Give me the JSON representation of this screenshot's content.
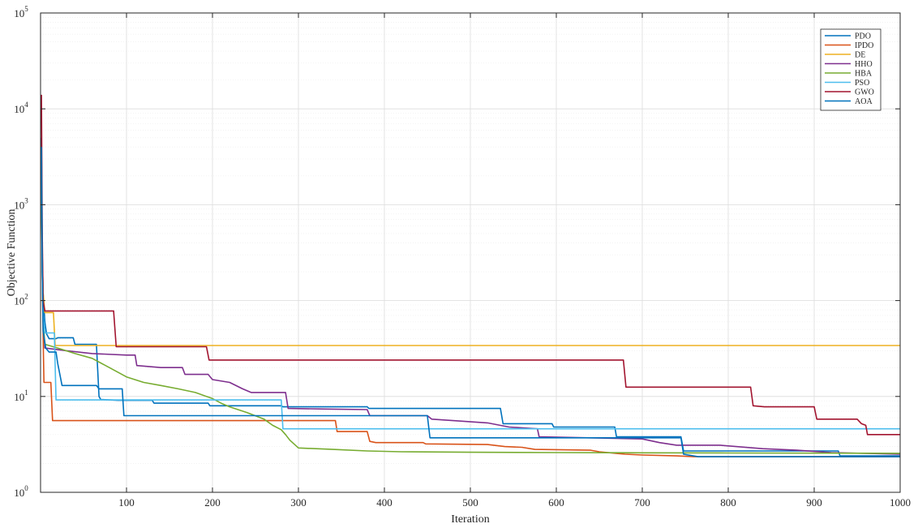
{
  "chart_data": {
    "type": "line",
    "title": "",
    "xlabel": "Iteration",
    "ylabel": "Objective Function",
    "xlim": [
      0,
      1000
    ],
    "ylim": [
      1,
      100000
    ],
    "yscale": "log",
    "grid": true,
    "legend_position": "top-right",
    "x_ticks": [
      {
        "value": 100,
        "label": "100"
      },
      {
        "value": 200,
        "label": "200"
      },
      {
        "value": 300,
        "label": "300"
      },
      {
        "value": 400,
        "label": "400"
      },
      {
        "value": 500,
        "label": "500"
      },
      {
        "value": 600,
        "label": "600"
      },
      {
        "value": 700,
        "label": "700"
      },
      {
        "value": 800,
        "label": "800"
      },
      {
        "value": 900,
        "label": "900"
      },
      {
        "value": 1000,
        "label": "1000"
      }
    ],
    "y_ticks": [
      {
        "value": 1,
        "base": "10",
        "exp": "0"
      },
      {
        "value": 10,
        "base": "10",
        "exp": "1"
      },
      {
        "value": 100,
        "base": "10",
        "exp": "2"
      },
      {
        "value": 1000,
        "base": "10",
        "exp": "3"
      },
      {
        "value": 10000,
        "base": "10",
        "exp": "4"
      },
      {
        "value": 100000,
        "base": "10",
        "exp": "5"
      }
    ],
    "series": [
      {
        "name": "PDO",
        "color": "#0072BD",
        "points": [
          [
            1,
            5000
          ],
          [
            2,
            300
          ],
          [
            3,
            120
          ],
          [
            5,
            60
          ],
          [
            7,
            45
          ],
          [
            10,
            40
          ],
          [
            18,
            40
          ],
          [
            20,
            41
          ],
          [
            38,
            41
          ],
          [
            40,
            35
          ],
          [
            65,
            35
          ],
          [
            68,
            10
          ],
          [
            70,
            9.3
          ],
          [
            90,
            9.1
          ],
          [
            130,
            9.1
          ],
          [
            132,
            8.5
          ],
          [
            195,
            8.5
          ],
          [
            197,
            8.0
          ],
          [
            280,
            8.0
          ],
          [
            282,
            7.8
          ],
          [
            380,
            7.8
          ],
          [
            382,
            7.5
          ],
          [
            535,
            7.5
          ],
          [
            538,
            5.2
          ],
          [
            595,
            5.2
          ],
          [
            597,
            4.8
          ],
          [
            668,
            4.8
          ],
          [
            670,
            3.8
          ],
          [
            745,
            3.8
          ],
          [
            748,
            2.7
          ],
          [
            928,
            2.7
          ],
          [
            930,
            2.4
          ],
          [
            1000,
            2.4
          ]
        ]
      },
      {
        "name": "IPDO",
        "color": "#D95319",
        "points": [
          [
            1,
            2000
          ],
          [
            2,
            200
          ],
          [
            3,
            40
          ],
          [
            4,
            14
          ],
          [
            12,
            14
          ],
          [
            14,
            5.6
          ],
          [
            343,
            5.6
          ],
          [
            345,
            4.3
          ],
          [
            380,
            4.3
          ],
          [
            383,
            3.4
          ],
          [
            390,
            3.3
          ],
          [
            445,
            3.3
          ],
          [
            448,
            3.2
          ],
          [
            520,
            3.15
          ],
          [
            540,
            3.0
          ],
          [
            560,
            2.95
          ],
          [
            575,
            2.8
          ],
          [
            640,
            2.75
          ],
          [
            650,
            2.65
          ],
          [
            680,
            2.5
          ],
          [
            700,
            2.45
          ],
          [
            740,
            2.4
          ],
          [
            760,
            2.35
          ],
          [
            1000,
            2.35
          ]
        ]
      },
      {
        "name": "DE",
        "color": "#EDB120",
        "points": [
          [
            1,
            3000
          ],
          [
            2,
            300
          ],
          [
            3,
            120
          ],
          [
            5,
            75
          ],
          [
            15,
            75
          ],
          [
            17,
            34
          ],
          [
            1000,
            34
          ]
        ]
      },
      {
        "name": "HHO",
        "color": "#7E2F8E",
        "points": [
          [
            1,
            2000
          ],
          [
            2,
            300
          ],
          [
            3,
            60
          ],
          [
            5,
            32
          ],
          [
            30,
            30
          ],
          [
            60,
            28
          ],
          [
            100,
            27
          ],
          [
            110,
            27
          ],
          [
            112,
            21
          ],
          [
            140,
            20
          ],
          [
            165,
            20
          ],
          [
            168,
            17
          ],
          [
            180,
            17
          ],
          [
            195,
            17
          ],
          [
            200,
            15
          ],
          [
            220,
            14
          ],
          [
            235,
            12
          ],
          [
            245,
            11
          ],
          [
            285,
            11
          ],
          [
            288,
            7.5
          ],
          [
            330,
            7.4
          ],
          [
            380,
            7.3
          ],
          [
            383,
            6.3
          ],
          [
            450,
            6.3
          ],
          [
            455,
            5.8
          ],
          [
            480,
            5.6
          ],
          [
            520,
            5.3
          ],
          [
            545,
            4.8
          ],
          [
            578,
            4.6
          ],
          [
            580,
            3.8
          ],
          [
            700,
            3.6
          ],
          [
            720,
            3.3
          ],
          [
            740,
            3.1
          ],
          [
            790,
            3.1
          ],
          [
            840,
            2.85
          ],
          [
            880,
            2.75
          ],
          [
            920,
            2.6
          ],
          [
            1000,
            2.5
          ]
        ]
      },
      {
        "name": "HBA",
        "color": "#77AC30",
        "points": [
          [
            1,
            2000
          ],
          [
            2,
            200
          ],
          [
            3,
            60
          ],
          [
            5,
            35
          ],
          [
            20,
            32
          ],
          [
            40,
            28
          ],
          [
            60,
            25
          ],
          [
            80,
            20
          ],
          [
            100,
            16
          ],
          [
            120,
            14
          ],
          [
            140,
            13
          ],
          [
            160,
            12
          ],
          [
            180,
            11
          ],
          [
            200,
            9.5
          ],
          [
            210,
            8.5
          ],
          [
            220,
            7.8
          ],
          [
            240,
            6.8
          ],
          [
            260,
            5.8
          ],
          [
            270,
            5.0
          ],
          [
            280,
            4.5
          ],
          [
            285,
            4.0
          ],
          [
            290,
            3.5
          ],
          [
            300,
            2.9
          ],
          [
            340,
            2.8
          ],
          [
            380,
            2.7
          ],
          [
            420,
            2.65
          ],
          [
            500,
            2.62
          ],
          [
            600,
            2.6
          ],
          [
            700,
            2.58
          ],
          [
            800,
            2.57
          ],
          [
            1000,
            2.55
          ]
        ]
      },
      {
        "name": "PSO",
        "color": "#4DBEEE",
        "points": [
          [
            1,
            3000
          ],
          [
            2,
            200
          ],
          [
            3,
            70
          ],
          [
            5,
            46
          ],
          [
            16,
            46
          ],
          [
            18,
            9.2
          ],
          [
            280,
            9.2
          ],
          [
            282,
            4.6
          ],
          [
            1000,
            4.6
          ]
        ]
      },
      {
        "name": "GWO",
        "color": "#A2142F",
        "points": [
          [
            1,
            14000
          ],
          [
            2,
            500
          ],
          [
            3,
            100
          ],
          [
            5,
            78
          ],
          [
            85,
            78
          ],
          [
            88,
            33
          ],
          [
            193,
            33
          ],
          [
            196,
            24
          ],
          [
            678,
            24
          ],
          [
            681,
            12.5
          ],
          [
            826,
            12.5
          ],
          [
            829,
            8
          ],
          [
            842,
            7.8
          ],
          [
            900,
            7.8
          ],
          [
            903,
            5.8
          ],
          [
            950,
            5.8
          ],
          [
            955,
            5.2
          ],
          [
            960,
            5.0
          ],
          [
            962,
            4.0
          ],
          [
            1000,
            4.0
          ]
        ]
      },
      {
        "name": "AOA",
        "color": "#0072BD",
        "points": [
          [
            1,
            4000
          ],
          [
            2,
            200
          ],
          [
            3,
            48
          ],
          [
            6,
            32
          ],
          [
            10,
            29
          ],
          [
            18,
            29
          ],
          [
            20,
            22
          ],
          [
            25,
            13
          ],
          [
            65,
            13
          ],
          [
            68,
            12
          ],
          [
            95,
            12
          ],
          [
            97,
            6.3
          ],
          [
            450,
            6.3
          ],
          [
            453,
            3.7
          ],
          [
            670,
            3.7
          ],
          [
            745,
            3.7
          ],
          [
            748,
            2.5
          ],
          [
            765,
            2.35
          ],
          [
            1000,
            2.35
          ]
        ]
      }
    ]
  }
}
